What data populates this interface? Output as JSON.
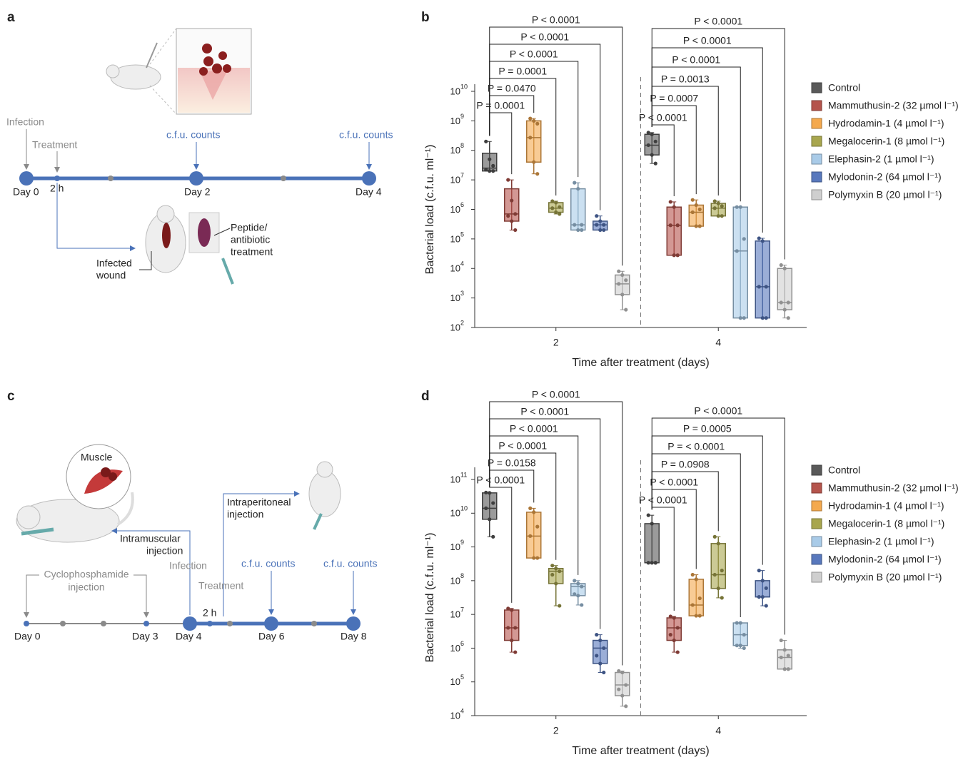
{
  "diagram_a": {
    "label": "a",
    "infection": "Infection",
    "treatment": "Treatment",
    "cfu_counts": [
      "c.f.u. counts",
      "c.f.u. counts"
    ],
    "timepoints": [
      "Day 0",
      "2 h",
      "Day 2",
      "Day 4"
    ],
    "wound": [
      "Infected",
      "wound"
    ],
    "treatment_detail": [
      "Peptide/",
      "antibiotic",
      "treatment"
    ]
  },
  "diagram_c": {
    "label": "c",
    "muscle": "Muscle",
    "intramuscular": [
      "Intramuscular",
      "injection"
    ],
    "intraperitoneal": [
      "Intraperitoneal",
      "injection"
    ],
    "cyclophosphamide": [
      "Cyclophosphamide",
      "injection"
    ],
    "infection": "Infection",
    "treatment": "Treatment",
    "two_h": "2 h",
    "cfu_counts": [
      "c.f.u. counts",
      "c.f.u. counts"
    ],
    "timepoints": [
      "Day 0",
      "Day 3",
      "Day 4",
      "Day 6",
      "Day 8"
    ]
  },
  "chart_data": [
    {
      "type": "box",
      "panel": "b",
      "ylabel": "Bacterial load (c.f.u. ml⁻¹)",
      "xlabel": "Time after treatment (days)",
      "log_scale": true,
      "categories": [
        "2",
        "4"
      ],
      "ylim": [
        100.0,
        10000000000.0
      ],
      "yticks": [
        {
          "value": 100.0,
          "label": "10",
          "exponent": "2"
        },
        {
          "value": 1000.0,
          "label": "10",
          "exponent": "3"
        },
        {
          "value": 10000.0,
          "label": "10",
          "exponent": "4"
        },
        {
          "value": 100000.0,
          "label": "10",
          "exponent": "5"
        },
        {
          "value": 1000000.0,
          "label": "10",
          "exponent": "6"
        },
        {
          "value": 10000000.0,
          "label": "10",
          "exponent": "7"
        },
        {
          "value": 100000000.0,
          "label": "10",
          "exponent": "8"
        },
        {
          "value": 1000000000.0,
          "label": "10",
          "exponent": "9"
        },
        {
          "value": 10000000000.0,
          "label": "10",
          "exponent": "10"
        }
      ],
      "series": [
        {
          "name": "Control",
          "color": "#595959",
          "values": [
            {
              "min": 20000000.0,
              "q1": 20000000.0,
              "median": 25000000.0,
              "q3": 80000000.0,
              "max": 200000000.0,
              "points": [
                200000000.0,
                50000000.0,
                30000000.0,
                22000000.0,
                20000000.0,
                20000000.0
              ]
            },
            {
              "min": 36000000.0,
              "q1": 70000000.0,
              "median": 150000000.0,
              "q3": 350000000.0,
              "max": 400000000.0,
              "points": [
                400000000.0,
                350000000.0,
                200000000.0,
                150000000.0,
                70000000.0,
                36000000.0
              ]
            }
          ]
        },
        {
          "name": "Mammuthusin-2 (32 µmol l⁻¹)",
          "color": "#b5544c",
          "values": [
            {
              "min": 200000.0,
              "q1": 400000.0,
              "median": 700000.0,
              "q3": 5000000.0,
              "max": 10000000.0,
              "points": [
                10000000.0,
                2000000.0,
                700000.0,
                600000.0,
                400000.0,
                200000.0
              ]
            },
            {
              "min": 28000.0,
              "q1": 28000.0,
              "median": 290000.0,
              "q3": 1200000.0,
              "max": 1800000.0,
              "points": [
                1800000.0,
                1200000.0,
                290000.0,
                290000.0,
                28000.0,
                28000.0
              ]
            }
          ]
        },
        {
          "name": "Hydrodamin-1 (4 µmol l⁻¹)",
          "color": "#f4a94e",
          "values": [
            {
              "min": 16000000.0,
              "q1": 40000000.0,
              "median": 270000000.0,
              "q3": 1000000000.0,
              "max": 1200000000.0,
              "points": [
                1200000000.0,
                1000000000.0,
                800000000.0,
                270000000.0,
                40000000.0,
                16000000.0
              ]
            },
            {
              "min": 270000.0,
              "q1": 270000.0,
              "median": 800000.0,
              "q3": 1400000.0,
              "max": 2100000.0,
              "points": [
                2100000.0,
                1400000.0,
                1000000.0,
                800000.0,
                270000.0,
                270000.0
              ]
            }
          ]
        },
        {
          "name": "Megalocerin-1 (8 µmol l⁻¹)",
          "color": "#a8a64e",
          "values": [
            {
              "min": 700000.0,
              "q1": 800000.0,
              "median": 1100000.0,
              "q3": 1700000.0,
              "max": 1900000.0,
              "points": [
                1900000.0,
                1700000.0,
                1200000.0,
                1100000.0,
                800000.0,
                700000.0
              ]
            },
            {
              "min": 600000.0,
              "q1": 600000.0,
              "median": 1100000.0,
              "q3": 1600000.0,
              "max": 1900000.0,
              "points": [
                1900000.0,
                1600000.0,
                1300000.0,
                1100000.0,
                600000.0,
                600000.0
              ]
            }
          ]
        },
        {
          "name": "Elephasin-2 (1 µmol l⁻¹)",
          "color": "#a9cbe8",
          "values": [
            {
              "min": 200000.0,
              "q1": 200000.0,
              "median": 300000.0,
              "q3": 5000000.0,
              "max": 8000000.0,
              "points": [
                8000000.0,
                5000000.0,
                300000.0,
                300000.0,
                200000.0,
                200000.0
              ]
            },
            {
              "min": 210.0,
              "q1": 210.0,
              "median": 39000.0,
              "q3": 1200000.0,
              "max": 1200000.0,
              "points": [
                1200000.0,
                1200000.0,
                100000.0,
                39000.0,
                210.0,
                210.0
              ]
            }
          ]
        },
        {
          "name": "Mylodonin-2 (64 µmol l⁻¹)",
          "color": "#5878bd",
          "values": [
            {
              "min": 200000.0,
              "q1": 200000.0,
              "median": 300000.0,
              "q3": 400000.0,
              "max": 600000.0,
              "points": [
                600000.0,
                400000.0,
                300000.0,
                300000.0,
                200000.0,
                200000.0
              ]
            },
            {
              "min": 210.0,
              "q1": 210.0,
              "median": 2400.0,
              "q3": 85000.0,
              "max": 105000.0,
              "points": [
                105000.0,
                85000.0,
                2400.0,
                2400.0,
                210.0,
                210.0
              ]
            }
          ]
        },
        {
          "name": "Polymyxin B (20 µmol l⁻¹)",
          "color": "#cfcfcf",
          "values": [
            {
              "min": 400.0,
              "q1": 1300.0,
              "median": 3000.0,
              "q3": 6000.0,
              "max": 8000.0,
              "points": [
                8000.0,
                6000.0,
                4000.0,
                3000.0,
                1300.0,
                400.0
              ]
            },
            {
              "min": 210.0,
              "q1": 400.0,
              "median": 700.0,
              "q3": 10000.0,
              "max": 13000.0,
              "points": [
                13000.0,
                10000.0,
                700.0,
                700.0,
                400.0,
                210.0
              ]
            }
          ]
        }
      ],
      "annotations": [
        [
          "P = 0.0001",
          "P = 0.0470",
          "P = 0.0001",
          "P < 0.0001",
          "P < 0.0001",
          "P < 0.0001"
        ],
        [
          "P < 0.0001",
          "P = 0.0007",
          "P = 0.0013",
          "P < 0.0001",
          "P < 0.0001",
          "P < 0.0001"
        ]
      ]
    },
    {
      "type": "box",
      "panel": "d",
      "ylabel": "Bacterial load (c.f.u. ml⁻¹)",
      "xlabel": "Time after treatment (days)",
      "log_scale": true,
      "categories": [
        "2",
        "4"
      ],
      "ylim": [
        10000.0,
        100000000000.0
      ],
      "yticks": [
        {
          "value": 10000.0,
          "label": "10",
          "exponent": "4"
        },
        {
          "value": 100000.0,
          "label": "10",
          "exponent": "5"
        },
        {
          "value": 1000000.0,
          "label": "10",
          "exponent": "6"
        },
        {
          "value": 10000000.0,
          "label": "10",
          "exponent": "7"
        },
        {
          "value": 100000000.0,
          "label": "10",
          "exponent": "8"
        },
        {
          "value": 1000000000.0,
          "label": "10",
          "exponent": "9"
        },
        {
          "value": 10000000000.0,
          "label": "10",
          "exponent": "10"
        },
        {
          "value": 100000000000.0,
          "label": "10",
          "exponent": "11"
        }
      ],
      "series": [
        {
          "name": "Control",
          "color": "#595959",
          "values": [
            {
              "min": 2000000000.0,
              "q1": 6600000000.0,
              "median": 14000000000.0,
              "q3": 40000000000.0,
              "max": 41000000000.0,
              "points": [
                41000000000.0,
                40000000000.0,
                20000000000.0,
                14000000000.0,
                6600000000.0,
                2000000000.0
              ]
            },
            {
              "min": 340000000.0,
              "q1": 340000000.0,
              "median": 340000000.0,
              "q3": 4900000000.0,
              "max": 8700000000.0,
              "points": [
                8700000000.0,
                4900000000.0,
                340000000.0,
                340000000.0,
                340000000.0,
                340000000.0
              ]
            }
          ]
        },
        {
          "name": "Mammuthusin-2 (32 µmol l⁻¹)",
          "color": "#b5544c",
          "values": [
            {
              "min": 760000.0,
              "q1": 1700000.0,
              "median": 4000000.0,
              "q3": 13500000.0,
              "max": 15000000.0,
              "points": [
                15000000.0,
                13500000.0,
                4000000.0,
                4000000.0,
                1700000.0,
                760000.0
              ]
            },
            {
              "min": 760000.0,
              "q1": 1700000.0,
              "median": 4000000.0,
              "q3": 7900000.0,
              "max": 8700000.0,
              "points": [
                8700000.0,
                7900000.0,
                4000000.0,
                2500000.0,
                1700000.0,
                760000.0
              ]
            }
          ]
        },
        {
          "name": "Hydrodamin-1 (4 µmol l⁻¹)",
          "color": "#f4a94e",
          "values": [
            {
              "min": 470000000.0,
              "q1": 470000000.0,
              "median": 2100000000.0,
              "q3": 10700000000.0,
              "max": 14000000000.0,
              "points": [
                14000000000.0,
                10700000000.0,
                4000000000.0,
                2100000000.0,
                470000000.0,
                470000000.0
              ]
            },
            {
              "min": 9100000.0,
              "q1": 9100000.0,
              "median": 19000000.0,
              "q3": 110000000.0,
              "max": 150000000.0,
              "points": [
                150000000.0,
                110000000.0,
                30000000.0,
                19000000.0,
                9100000.0,
                9100000.0
              ]
            }
          ]
        },
        {
          "name": "Megalocerin-1 (8 µmol l⁻¹)",
          "color": "#a8a64e",
          "values": [
            {
              "min": 18000000.0,
              "q1": 82000000.0,
              "median": 190000000.0,
              "q3": 230000000.0,
              "max": 280000000.0,
              "points": [
                280000000.0,
                230000000.0,
                190000000.0,
                150000000.0,
                82000000.0,
                18000000.0
              ]
            },
            {
              "min": 31000000.0,
              "q1": 59000000.0,
              "median": 150000000.0,
              "q3": 1260000000.0,
              "max": 2000000000.0,
              "points": [
                2000000000.0,
                1260000000.0,
                200000000.0,
                150000000.0,
                59000000.0,
                31000000.0
              ]
            }
          ]
        },
        {
          "name": "Elephasin-2 (1 µmol l⁻¹)",
          "color": "#a9cbe8",
          "values": [
            {
              "min": 19000000.0,
              "q1": 36000000.0,
              "median": 67000000.0,
              "q3": 82000000.0,
              "max": 100000000.0,
              "points": [
                100000000.0,
                82000000.0,
                67000000.0,
                40000000.0,
                36000000.0,
                19000000.0
              ]
            },
            {
              "min": 1000000.0,
              "q1": 1200000.0,
              "median": 2500000.0,
              "q3": 5600000.0,
              "max": 5600000.0,
              "points": [
                5600000.0,
                5600000.0,
                2500000.0,
                1200000.0,
                1200000.0,
                1000000.0
              ]
            }
          ]
        },
        {
          "name": "Mylodonin-2 (64 µmol l⁻¹)",
          "color": "#5878bd",
          "values": [
            {
              "min": 190000.0,
              "q1": 350000.0,
              "median": 1000000.0,
              "q3": 1700000.0,
              "max": 2500000.0,
              "points": [
                2500000.0,
                1700000.0,
                1000000.0,
                600000.0,
                350000.0,
                190000.0
              ]
            },
            {
              "min": 18000000.0,
              "q1": 33000000.0,
              "median": 33000000.0,
              "q3": 100000000.0,
              "max": 200000000.0,
              "points": [
                200000000.0,
                100000000.0,
                60000000.0,
                33000000.0,
                33000000.0,
                18000000.0
              ]
            }
          ]
        },
        {
          "name": "Polymyxin B (20 µmol l⁻¹)",
          "color": "#cfcfcf",
          "values": [
            {
              "min": 19000.0,
              "q1": 39000.0,
              "median": 81000.0,
              "q3": 190000.0,
              "max": 210000.0,
              "points": [
                210000.0,
                190000.0,
                81000.0,
                60000.0,
                39000.0,
                19000.0
              ]
            },
            {
              "min": 240000.0,
              "q1": 240000.0,
              "median": 530000.0,
              "q3": 890000.0,
              "max": 1700000.0,
              "points": [
                1700000.0,
                890000.0,
                600000.0,
                530000.0,
                240000.0,
                240000.0
              ]
            }
          ]
        }
      ],
      "annotations": [
        [
          "P < 0.0001",
          "P = 0.0158",
          "P < 0.0001",
          "P < 0.0001",
          "P < 0.0001",
          "P < 0.0001"
        ],
        [
          "P < 0.0001",
          "P < 0.0001",
          "P = 0.0908",
          "P = < 0.0001",
          "P = 0.0005",
          "P < 0.0001"
        ]
      ]
    }
  ]
}
